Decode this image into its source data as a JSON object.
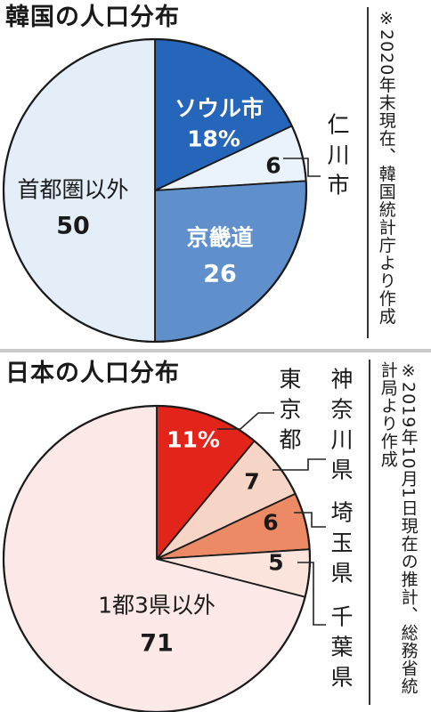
{
  "chart_data": [
    {
      "type": "pie",
      "title": "韓国の人口分布",
      "note": "※2020年末現在、韓国統計庁より作成",
      "start_angle_deg": 0,
      "direction": "clockwise",
      "slices": [
        {
          "label": "ソウル市",
          "value": 18,
          "value_text": "18%",
          "color": "#2566bb",
          "label_color": "#ffffff"
        },
        {
          "label": "仁川市",
          "value": 6,
          "value_text": "6",
          "color": "#eaf3fb",
          "label_color": "#1a1a1a"
        },
        {
          "label": "京畿道",
          "value": 26,
          "value_text": "26",
          "color": "#5f90cc",
          "label_color": "#ffffff"
        },
        {
          "label": "首都圏以外",
          "value": 50,
          "value_text": "50",
          "color": "#e4eef9",
          "label_color": "#1a1a1a"
        }
      ]
    },
    {
      "type": "pie",
      "title": "日本の人口分布",
      "note": "※2019年10月1日現在の推計、総務省統計局より作成",
      "start_angle_deg": 0,
      "direction": "clockwise",
      "slices": [
        {
          "label": "東京都",
          "value": 11,
          "value_text": "11%",
          "color": "#e3241b",
          "label_color": "#ffffff"
        },
        {
          "label": "神奈川県",
          "value": 7,
          "value_text": "7",
          "color": "#f6d4c6",
          "label_color": "#1a1a1a"
        },
        {
          "label": "埼玉県",
          "value": 6,
          "value_text": "6",
          "color": "#ec8a66",
          "label_color": "#1a1a1a"
        },
        {
          "label": "千葉県",
          "value": 5,
          "value_text": "5",
          "color": "#fbe4dc",
          "label_color": "#1a1a1a"
        },
        {
          "label": "1都3県以外",
          "value": 71,
          "value_text": "71",
          "color": "#fde8e8",
          "label_color": "#1a1a1a"
        }
      ]
    }
  ]
}
